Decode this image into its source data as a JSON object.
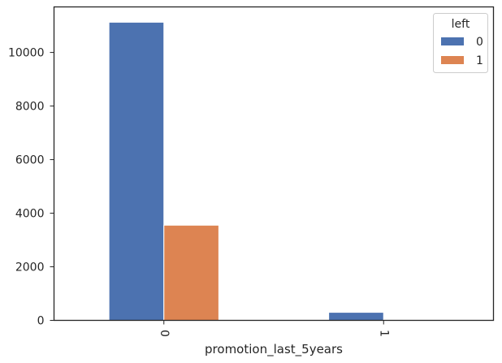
{
  "chart_data": {
    "type": "bar",
    "categories": [
      "0",
      "1"
    ],
    "xlabel": "promotion_last_5years",
    "ylabel": "",
    "ylim": [
      0,
      11700
    ],
    "yticks": [
      0,
      2000,
      4000,
      6000,
      8000,
      10000
    ],
    "grid": false,
    "legend": {
      "title": "left",
      "placement": "top-right"
    },
    "series": [
      {
        "name": "0",
        "values": [
          11128,
          300
        ],
        "color": "#4c72b0"
      },
      {
        "name": "1",
        "values": [
          3552,
          19
        ],
        "color": "#dd8452"
      }
    ]
  }
}
